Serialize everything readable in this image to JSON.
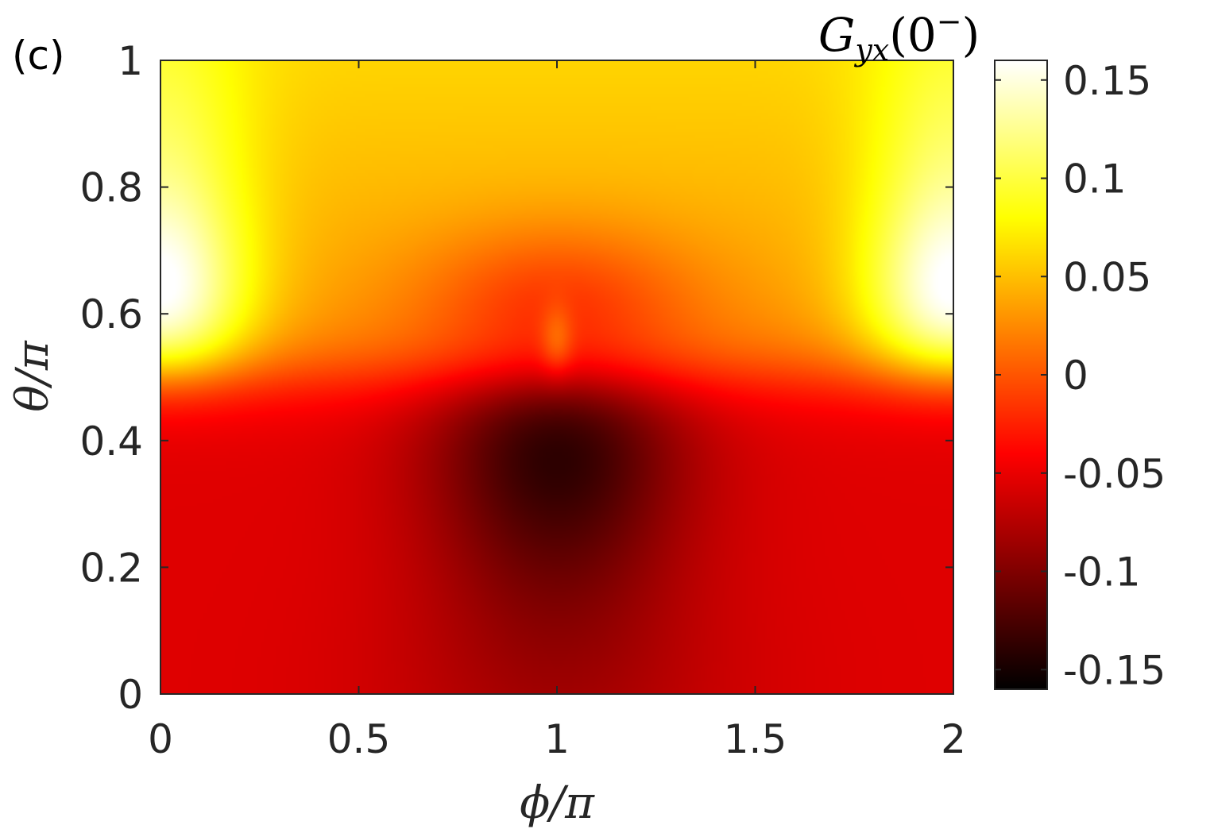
{
  "panel_label": "(c)",
  "chart_data": {
    "type": "heatmap",
    "title": "",
    "xlabel": "ϕ/π",
    "ylabel": "θ/π",
    "xlim": [
      0,
      2
    ],
    "ylim": [
      0,
      1
    ],
    "x_ticks": [
      0,
      0.5,
      1,
      1.5,
      2
    ],
    "x_tick_labels": [
      "0",
      "0.5",
      "1",
      "1.5",
      "2"
    ],
    "y_ticks": [
      0,
      0.2,
      0.4,
      0.6,
      0.8,
      1
    ],
    "y_tick_labels": [
      "0",
      "0.2",
      "0.4",
      "0.6",
      "0.8",
      "1"
    ],
    "colormap": "hot",
    "colorbar": {
      "title": "G_yx(0⁻)",
      "title_parts": {
        "base": "G",
        "sub": "yx",
        "arg_open": "(0",
        "sup": "−",
        "arg_close": ")"
      },
      "range": [
        -0.16,
        0.16
      ],
      "ticks": [
        -0.15,
        -0.1,
        -0.05,
        0,
        0.05,
        0.1,
        0.15
      ],
      "tick_labels": [
        "-0.15",
        "-0.1",
        "-0.05",
        "0",
        "0.05",
        "0.1",
        "0.15"
      ]
    },
    "features": [
      {
        "phi_over_pi": 1.0,
        "theta_over_pi": 0.44,
        "value": -0.155,
        "note": "minimum"
      },
      {
        "phi_over_pi": 0.0,
        "theta_over_pi": 0.6,
        "value": 0.155,
        "note": "maximum"
      },
      {
        "phi_over_pi": 2.0,
        "theta_over_pi": 0.6,
        "value": 0.155,
        "note": "maximum"
      },
      {
        "phi_over_pi": 1.0,
        "theta_over_pi": 0.0,
        "value": -0.07
      },
      {
        "phi_over_pi": 1.0,
        "theta_over_pi": 1.0,
        "value": 0.06
      }
    ]
  }
}
